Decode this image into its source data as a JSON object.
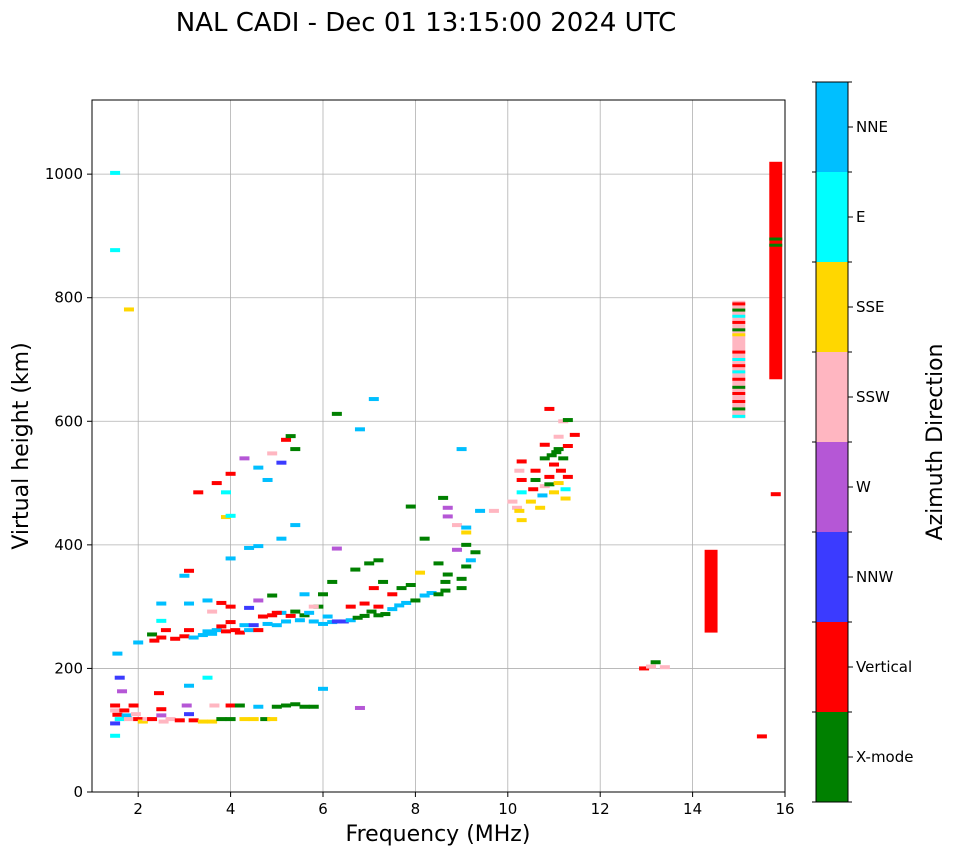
{
  "chart_data": {
    "type": "scatter",
    "title": "NAL CADI - Dec 01 13:15:00 2024 UTC",
    "xlabel": "Frequency (MHz)",
    "ylabel": "Virtual height (km)",
    "xlim": [
      1,
      16
    ],
    "ylim": [
      0,
      1120
    ],
    "xticks": [
      2,
      4,
      6,
      8,
      10,
      12,
      14,
      16
    ],
    "yticks": [
      0,
      200,
      400,
      600,
      800,
      1000
    ],
    "grid": true,
    "colorbar": {
      "label": "Azimuth Direction",
      "categories": [
        "X-mode",
        "Vertical",
        "NNW",
        "W",
        "SSW",
        "SSE",
        "E",
        "NNE"
      ],
      "colors": [
        "#008000",
        "#ff0000",
        "#3b3bff",
        "#b557d6",
        "#ffb6c1",
        "#ffd700",
        "#00ffff",
        "#00bfff"
      ]
    },
    "points": [
      {
        "f": 1.5,
        "h": 1002,
        "c": "E"
      },
      {
        "f": 1.5,
        "h": 877,
        "c": "E"
      },
      {
        "f": 1.8,
        "h": 781,
        "c": "SSE"
      },
      {
        "f": 1.55,
        "h": 224,
        "c": "NNE"
      },
      {
        "f": 1.6,
        "h": 185,
        "c": "NNW"
      },
      {
        "f": 1.65,
        "h": 163,
        "c": "W"
      },
      {
        "f": 1.5,
        "h": 140,
        "c": "Vertical"
      },
      {
        "f": 1.5,
        "h": 132,
        "c": "SSW"
      },
      {
        "f": 1.55,
        "h": 125,
        "c": "Vertical"
      },
      {
        "f": 1.6,
        "h": 118,
        "c": "E"
      },
      {
        "f": 1.5,
        "h": 111,
        "c": "NNW"
      },
      {
        "f": 1.5,
        "h": 91,
        "c": "E"
      },
      {
        "f": 1.7,
        "h": 132,
        "c": "Vertical"
      },
      {
        "f": 1.75,
        "h": 124,
        "c": "NNE"
      },
      {
        "f": 1.8,
        "h": 118,
        "c": "SSW"
      },
      {
        "f": 1.9,
        "h": 140,
        "c": "Vertical"
      },
      {
        "f": 1.95,
        "h": 126,
        "c": "SSW"
      },
      {
        "f": 2.0,
        "h": 118,
        "c": "Vertical"
      },
      {
        "f": 2.1,
        "h": 114,
        "c": "SSE"
      },
      {
        "f": 2.2,
        "h": 118,
        "c": "SSW"
      },
      {
        "f": 2.3,
        "h": 118,
        "c": "Vertical"
      },
      {
        "f": 2.45,
        "h": 160,
        "c": "Vertical"
      },
      {
        "f": 2.5,
        "h": 134,
        "c": "Vertical"
      },
      {
        "f": 2.5,
        "h": 124,
        "c": "W"
      },
      {
        "f": 2.55,
        "h": 114,
        "c": "SSW"
      },
      {
        "f": 2.7,
        "h": 118,
        "c": "SSW"
      },
      {
        "f": 2.9,
        "h": 116,
        "c": "Vertical"
      },
      {
        "f": 3.05,
        "h": 140,
        "c": "W"
      },
      {
        "f": 3.1,
        "h": 126,
        "c": "NNW"
      },
      {
        "f": 3.2,
        "h": 116,
        "c": "Vertical"
      },
      {
        "f": 3.4,
        "h": 114,
        "c": "SSE"
      },
      {
        "f": 3.6,
        "h": 114,
        "c": "SSE"
      },
      {
        "f": 3.65,
        "h": 140,
        "c": "SSW"
      },
      {
        "f": 3.8,
        "h": 118,
        "c": "X-mode"
      },
      {
        "f": 4.0,
        "h": 118,
        "c": "X-mode"
      },
      {
        "f": 4.0,
        "h": 140,
        "c": "Vertical"
      },
      {
        "f": 4.2,
        "h": 140,
        "c": "X-mode"
      },
      {
        "f": 4.3,
        "h": 118,
        "c": "SSE"
      },
      {
        "f": 4.5,
        "h": 118,
        "c": "SSE"
      },
      {
        "f": 4.6,
        "h": 138,
        "c": "NNE"
      },
      {
        "f": 4.75,
        "h": 118,
        "c": "X-mode"
      },
      {
        "f": 4.9,
        "h": 118,
        "c": "SSE"
      },
      {
        "f": 5.0,
        "h": 138,
        "c": "X-mode"
      },
      {
        "f": 5.2,
        "h": 140,
        "c": "X-mode"
      },
      {
        "f": 5.4,
        "h": 142,
        "c": "X-mode"
      },
      {
        "f": 5.6,
        "h": 138,
        "c": "X-mode"
      },
      {
        "f": 5.8,
        "h": 138,
        "c": "X-mode"
      },
      {
        "f": 6.0,
        "h": 167,
        "c": "NNE"
      },
      {
        "f": 6.8,
        "h": 136,
        "c": "W"
      },
      {
        "f": 3.1,
        "h": 172,
        "c": "NNE"
      },
      {
        "f": 3.5,
        "h": 185,
        "c": "E"
      },
      {
        "f": 2.0,
        "h": 242,
        "c": "NNE"
      },
      {
        "f": 2.3,
        "h": 255,
        "c": "X-mode"
      },
      {
        "f": 2.35,
        "h": 245,
        "c": "Vertical"
      },
      {
        "f": 2.5,
        "h": 250,
        "c": "Vertical"
      },
      {
        "f": 2.6,
        "h": 262,
        "c": "Vertical"
      },
      {
        "f": 2.5,
        "h": 277,
        "c": "E"
      },
      {
        "f": 2.8,
        "h": 248,
        "c": "Vertical"
      },
      {
        "f": 3.0,
        "h": 252,
        "c": "Vertical"
      },
      {
        "f": 3.1,
        "h": 262,
        "c": "Vertical"
      },
      {
        "f": 3.2,
        "h": 250,
        "c": "NNE"
      },
      {
        "f": 3.4,
        "h": 254,
        "c": "NNE"
      },
      {
        "f": 3.5,
        "h": 260,
        "c": "NNE"
      },
      {
        "f": 3.6,
        "h": 256,
        "c": "NNE"
      },
      {
        "f": 3.7,
        "h": 262,
        "c": "NNE"
      },
      {
        "f": 3.8,
        "h": 268,
        "c": "Vertical"
      },
      {
        "f": 3.9,
        "h": 260,
        "c": "Vertical"
      },
      {
        "f": 4.0,
        "h": 275,
        "c": "Vertical"
      },
      {
        "f": 4.1,
        "h": 262,
        "c": "Vertical"
      },
      {
        "f": 4.2,
        "h": 258,
        "c": "Vertical"
      },
      {
        "f": 4.3,
        "h": 270,
        "c": "NNE"
      },
      {
        "f": 4.4,
        "h": 262,
        "c": "NNE"
      },
      {
        "f": 4.5,
        "h": 270,
        "c": "NNW"
      },
      {
        "f": 4.6,
        "h": 262,
        "c": "Vertical"
      },
      {
        "f": 4.7,
        "h": 284,
        "c": "Vertical"
      },
      {
        "f": 4.8,
        "h": 272,
        "c": "NNE"
      },
      {
        "f": 4.9,
        "h": 286,
        "c": "Vertical"
      },
      {
        "f": 5.0,
        "h": 270,
        "c": "NNE"
      },
      {
        "f": 5.1,
        "h": 290,
        "c": "NNE"
      },
      {
        "f": 5.2,
        "h": 276,
        "c": "NNE"
      },
      {
        "f": 5.3,
        "h": 285,
        "c": "Vertical"
      },
      {
        "f": 5.4,
        "h": 292,
        "c": "X-mode"
      },
      {
        "f": 5.5,
        "h": 278,
        "c": "NNE"
      },
      {
        "f": 5.6,
        "h": 286,
        "c": "X-mode"
      },
      {
        "f": 5.7,
        "h": 290,
        "c": "NNE"
      },
      {
        "f": 5.8,
        "h": 276,
        "c": "NNE"
      },
      {
        "f": 5.9,
        "h": 300,
        "c": "X-mode"
      },
      {
        "f": 6.0,
        "h": 272,
        "c": "NNE"
      },
      {
        "f": 6.1,
        "h": 284,
        "c": "NNE"
      },
      {
        "f": 6.2,
        "h": 275,
        "c": "NNE"
      },
      {
        "f": 6.3,
        "h": 276,
        "c": "NNW"
      },
      {
        "f": 6.45,
        "h": 276,
        "c": "NNW"
      },
      {
        "f": 6.6,
        "h": 278,
        "c": "NNE"
      },
      {
        "f": 6.75,
        "h": 282,
        "c": "X-mode"
      },
      {
        "f": 6.9,
        "h": 285,
        "c": "X-mode"
      },
      {
        "f": 7.05,
        "h": 292,
        "c": "X-mode"
      },
      {
        "f": 7.2,
        "h": 286,
        "c": "X-mode"
      },
      {
        "f": 7.35,
        "h": 288,
        "c": "X-mode"
      },
      {
        "f": 7.5,
        "h": 296,
        "c": "NNE"
      },
      {
        "f": 7.65,
        "h": 302,
        "c": "NNE"
      },
      {
        "f": 7.8,
        "h": 306,
        "c": "NNE"
      },
      {
        "f": 8.0,
        "h": 310,
        "c": "X-mode"
      },
      {
        "f": 8.2,
        "h": 318,
        "c": "NNE"
      },
      {
        "f": 8.35,
        "h": 322,
        "c": "NNE"
      },
      {
        "f": 8.5,
        "h": 320,
        "c": "X-mode"
      },
      {
        "f": 8.65,
        "h": 326,
        "c": "X-mode"
      },
      {
        "f": 8.65,
        "h": 340,
        "c": "X-mode"
      },
      {
        "f": 9.0,
        "h": 330,
        "c": "X-mode"
      },
      {
        "f": 9.0,
        "h": 345,
        "c": "X-mode"
      },
      {
        "f": 9.1,
        "h": 365,
        "c": "X-mode"
      },
      {
        "f": 9.3,
        "h": 388,
        "c": "X-mode"
      },
      {
        "f": 6.6,
        "h": 300,
        "c": "Vertical"
      },
      {
        "f": 6.9,
        "h": 305,
        "c": "Vertical"
      },
      {
        "f": 7.2,
        "h": 300,
        "c": "Vertical"
      },
      {
        "f": 7.1,
        "h": 330,
        "c": "Vertical"
      },
      {
        "f": 7.3,
        "h": 340,
        "c": "X-mode"
      },
      {
        "f": 7.5,
        "h": 320,
        "c": "Vertical"
      },
      {
        "f": 7.7,
        "h": 330,
        "c": "X-mode"
      },
      {
        "f": 7.9,
        "h": 335,
        "c": "X-mode"
      },
      {
        "f": 8.1,
        "h": 355,
        "c": "SSE"
      },
      {
        "f": 8.5,
        "h": 370,
        "c": "X-mode"
      },
      {
        "f": 8.7,
        "h": 352,
        "c": "X-mode"
      },
      {
        "f": 8.9,
        "h": 392,
        "c": "W"
      },
      {
        "f": 6.3,
        "h": 394,
        "c": "W"
      },
      {
        "f": 6.7,
        "h": 360,
        "c": "X-mode"
      },
      {
        "f": 7.0,
        "h": 370,
        "c": "X-mode"
      },
      {
        "f": 7.2,
        "h": 375,
        "c": "X-mode"
      },
      {
        "f": 6.0,
        "h": 320,
        "c": "X-mode"
      },
      {
        "f": 6.2,
        "h": 340,
        "c": "X-mode"
      },
      {
        "f": 5.6,
        "h": 320,
        "c": "NNE"
      },
      {
        "f": 5.8,
        "h": 300,
        "c": "SSW"
      },
      {
        "f": 5.0,
        "h": 290,
        "c": "Vertical"
      },
      {
        "f": 4.9,
        "h": 318,
        "c": "X-mode"
      },
      {
        "f": 4.6,
        "h": 310,
        "c": "W"
      },
      {
        "f": 4.4,
        "h": 298,
        "c": "NNW"
      },
      {
        "f": 4.0,
        "h": 300,
        "c": "Vertical"
      },
      {
        "f": 3.8,
        "h": 306,
        "c": "Vertical"
      },
      {
        "f": 3.6,
        "h": 292,
        "c": "SSW"
      },
      {
        "f": 3.5,
        "h": 310,
        "c": "NNE"
      },
      {
        "f": 3.1,
        "h": 305,
        "c": "NNE"
      },
      {
        "f": 2.5,
        "h": 305,
        "c": "NNE"
      },
      {
        "f": 3.0,
        "h": 350,
        "c": "NNE"
      },
      {
        "f": 3.1,
        "h": 358,
        "c": "Vertical"
      },
      {
        "f": 4.0,
        "h": 378,
        "c": "NNE"
      },
      {
        "f": 3.9,
        "h": 445,
        "c": "SSE"
      },
      {
        "f": 4.0,
        "h": 447,
        "c": "E"
      },
      {
        "f": 3.7,
        "h": 500,
        "c": "Vertical"
      },
      {
        "f": 3.9,
        "h": 485,
        "c": "E"
      },
      {
        "f": 4.4,
        "h": 395,
        "c": "NNE"
      },
      {
        "f": 4.6,
        "h": 398,
        "c": "NNE"
      },
      {
        "f": 5.1,
        "h": 410,
        "c": "NNE"
      },
      {
        "f": 5.4,
        "h": 432,
        "c": "NNE"
      },
      {
        "f": 4.0,
        "h": 515,
        "c": "Vertical"
      },
      {
        "f": 4.3,
        "h": 540,
        "c": "W"
      },
      {
        "f": 4.6,
        "h": 525,
        "c": "NNE"
      },
      {
        "f": 4.8,
        "h": 505,
        "c": "NNE"
      },
      {
        "f": 4.9,
        "h": 548,
        "c": "SSW"
      },
      {
        "f": 5.1,
        "h": 533,
        "c": "NNW"
      },
      {
        "f": 5.2,
        "h": 570,
        "c": "Vertical"
      },
      {
        "f": 5.3,
        "h": 576,
        "c": "X-mode"
      },
      {
        "f": 5.4,
        "h": 555,
        "c": "X-mode"
      },
      {
        "f": 3.3,
        "h": 485,
        "c": "Vertical"
      },
      {
        "f": 6.3,
        "h": 612,
        "c": "X-mode"
      },
      {
        "f": 6.8,
        "h": 587,
        "c": "NNE"
      },
      {
        "f": 7.1,
        "h": 636,
        "c": "NNE"
      },
      {
        "f": 7.9,
        "h": 462,
        "c": "X-mode"
      },
      {
        "f": 8.2,
        "h": 410,
        "c": "X-mode"
      },
      {
        "f": 8.6,
        "h": 476,
        "c": "X-mode"
      },
      {
        "f": 8.7,
        "h": 460,
        "c": "W"
      },
      {
        "f": 8.7,
        "h": 446,
        "c": "W"
      },
      {
        "f": 8.9,
        "h": 432,
        "c": "SSW"
      },
      {
        "f": 9.1,
        "h": 428,
        "c": "NNE"
      },
      {
        "f": 9.1,
        "h": 420,
        "c": "SSE"
      },
      {
        "f": 9.1,
        "h": 400,
        "c": "X-mode"
      },
      {
        "f": 9.0,
        "h": 555,
        "c": "NNE"
      },
      {
        "f": 9.4,
        "h": 455,
        "c": "NNE"
      },
      {
        "f": 9.7,
        "h": 455,
        "c": "SSW"
      },
      {
        "f": 9.2,
        "h": 375,
        "c": "NNE"
      },
      {
        "f": 10.1,
        "h": 470,
        "c": "SSW"
      },
      {
        "f": 10.2,
        "h": 460,
        "c": "SSW"
      },
      {
        "f": 10.3,
        "h": 440,
        "c": "SSE"
      },
      {
        "f": 10.25,
        "h": 455,
        "c": "SSE"
      },
      {
        "f": 10.3,
        "h": 485,
        "c": "E"
      },
      {
        "f": 10.3,
        "h": 505,
        "c": "Vertical"
      },
      {
        "f": 10.25,
        "h": 520,
        "c": "SSW"
      },
      {
        "f": 10.3,
        "h": 535,
        "c": "Vertical"
      },
      {
        "f": 10.5,
        "h": 470,
        "c": "SSE"
      },
      {
        "f": 10.55,
        "h": 490,
        "c": "Vertical"
      },
      {
        "f": 10.6,
        "h": 505,
        "c": "X-mode"
      },
      {
        "f": 10.6,
        "h": 520,
        "c": "Vertical"
      },
      {
        "f": 10.7,
        "h": 460,
        "c": "SSE"
      },
      {
        "f": 10.75,
        "h": 480,
        "c": "NNE"
      },
      {
        "f": 10.8,
        "h": 495,
        "c": "SSW"
      },
      {
        "f": 10.8,
        "h": 540,
        "c": "X-mode"
      },
      {
        "f": 10.8,
        "h": 562,
        "c": "Vertical"
      },
      {
        "f": 10.9,
        "h": 498,
        "c": "X-mode"
      },
      {
        "f": 10.9,
        "h": 510,
        "c": "Vertical"
      },
      {
        "f": 10.95,
        "h": 545,
        "c": "X-mode"
      },
      {
        "f": 10.9,
        "h": 620,
        "c": "Vertical"
      },
      {
        "f": 11.0,
        "h": 485,
        "c": "SSE"
      },
      {
        "f": 11.0,
        "h": 530,
        "c": "Vertical"
      },
      {
        "f": 11.05,
        "h": 550,
        "c": "X-mode"
      },
      {
        "f": 11.1,
        "h": 500,
        "c": "SSE"
      },
      {
        "f": 11.15,
        "h": 520,
        "c": "Vertical"
      },
      {
        "f": 11.1,
        "h": 555,
        "c": "X-mode"
      },
      {
        "f": 11.1,
        "h": 575,
        "c": "SSW"
      },
      {
        "f": 11.2,
        "h": 540,
        "c": "X-mode"
      },
      {
        "f": 11.2,
        "h": 600,
        "c": "SSW"
      },
      {
        "f": 11.25,
        "h": 490,
        "c": "E"
      },
      {
        "f": 11.3,
        "h": 510,
        "c": "Vertical"
      },
      {
        "f": 11.3,
        "h": 560,
        "c": "Vertical"
      },
      {
        "f": 11.3,
        "h": 602,
        "c": "X-mode"
      },
      {
        "f": 11.45,
        "h": 578,
        "c": "Vertical"
      },
      {
        "f": 11.25,
        "h": 475,
        "c": "SSE"
      },
      {
        "f": 12.95,
        "h": 200,
        "c": "Vertical"
      },
      {
        "f": 13.1,
        "h": 203,
        "c": "SSW"
      },
      {
        "f": 13.2,
        "h": 210,
        "c": "X-mode"
      },
      {
        "f": 13.4,
        "h": 202,
        "c": "SSW"
      },
      {
        "f": 15.5,
        "h": 90,
        "c": "Vertical"
      },
      {
        "f": 15.8,
        "h": 482,
        "c": "Vertical"
      }
    ],
    "bands": [
      {
        "f": 14.4,
        "h0": 258,
        "h1": 392,
        "c": "Vertical"
      },
      {
        "f": 15.0,
        "h0": 605,
        "h1": 795,
        "c": "SSW"
      },
      {
        "f": 15.8,
        "h0": 668,
        "h1": 1020,
        "c": "Vertical"
      }
    ],
    "band_stripes": [
      {
        "f": 15.0,
        "h": 790,
        "c": "Vertical"
      },
      {
        "f": 15.0,
        "h": 780,
        "c": "X-mode"
      },
      {
        "f": 15.0,
        "h": 770,
        "c": "E"
      },
      {
        "f": 15.0,
        "h": 760,
        "c": "Vertical"
      },
      {
        "f": 15.0,
        "h": 748,
        "c": "X-mode"
      },
      {
        "f": 15.0,
        "h": 740,
        "c": "SSE"
      },
      {
        "f": 15.0,
        "h": 712,
        "c": "Vertical"
      },
      {
        "f": 15.0,
        "h": 700,
        "c": "E"
      },
      {
        "f": 15.0,
        "h": 690,
        "c": "Vertical"
      },
      {
        "f": 15.0,
        "h": 680,
        "c": "E"
      },
      {
        "f": 15.0,
        "h": 668,
        "c": "Vertical"
      },
      {
        "f": 15.0,
        "h": 655,
        "c": "X-mode"
      },
      {
        "f": 15.0,
        "h": 645,
        "c": "Vertical"
      },
      {
        "f": 15.0,
        "h": 632,
        "c": "Vertical"
      },
      {
        "f": 15.0,
        "h": 620,
        "c": "X-mode"
      },
      {
        "f": 15.0,
        "h": 608,
        "c": "E"
      },
      {
        "f": 15.8,
        "h": 895,
        "c": "X-mode"
      },
      {
        "f": 15.8,
        "h": 885,
        "c": "X-mode"
      }
    ]
  }
}
